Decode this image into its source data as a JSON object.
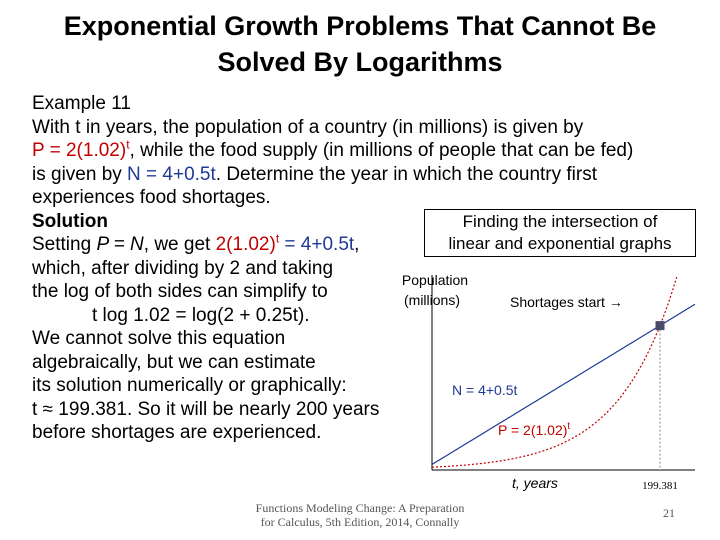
{
  "slide": {
    "title": "Exponential Growth Problems That Cannot Be Solved By Logarithms",
    "example_label": "Example 11",
    "lines": {
      "l1": "With t in years, the population of a country (in millions) is given by",
      "l2_formula": "P = 2(1.02)",
      "l2_exp": "t",
      "l2_rest": ", while the food supply (in millions of people that can be fed)",
      "l3_pre": "is given by ",
      "l3_formula": "N = 4+0.5t",
      "l3_post": ". Determine the year in which the country first",
      "l4": "experiences food shortages.",
      "solution_label": "Solution",
      "l6_pre": "Setting ",
      "l6_eq": "P = N",
      "l6_mid": ", we get ",
      "l6_lhs": "2(1.02)",
      "l6_exp": "t",
      "l6_rhs": " = 4+0.5t",
      "l6_end": ",",
      "l7": "which, after dividing by 2 and taking",
      "l8": "the log of both sides can simplify to",
      "l9": "t log 1.02 = log(2 + 0.25t).",
      "l10": "We cannot solve this equation",
      "l11": "algebraically, but we can estimate",
      "l12": "its solution numerically or graphically:",
      "l13": "t ≈ 199.381. So it will be nearly 200 years",
      "l14": "before shortages are experienced."
    },
    "footer_line1": "Functions Modeling Change: A Preparation",
    "footer_line2": "for Calculus, 5th Edition, 2014, Connally",
    "page_number": "21"
  },
  "graph": {
    "caption_line1": "Finding the intersection of",
    "caption_line2": "linear and exponential graphs",
    "y_label_line1": "Population",
    "y_label_line2": "(millions)",
    "shortages_label": "Shortages start →",
    "linear_label": "N = 4+0.5t",
    "exp_label_base": "P = 2(1.02)",
    "exp_label_exp": "t",
    "x_label": "t, years",
    "x_tick": "199.381"
  },
  "chart_data": {
    "type": "line",
    "title": "Finding the intersection of linear and exponential graphs",
    "xlabel": "t, years",
    "ylabel": "Population (millions)",
    "x_range": [
      0,
      230
    ],
    "y_range": [
      0,
      140
    ],
    "series": [
      {
        "name": "N = 4+0.5t",
        "formula": "4+0.5t",
        "color": "#1f3a93"
      },
      {
        "name": "P = 2(1.02)^t",
        "formula": "2*1.02^t",
        "color": "#c00000"
      }
    ],
    "intersection": {
      "t": 199.381,
      "value": 103.69
    },
    "x_tick_labels": [
      "199.381"
    ]
  }
}
